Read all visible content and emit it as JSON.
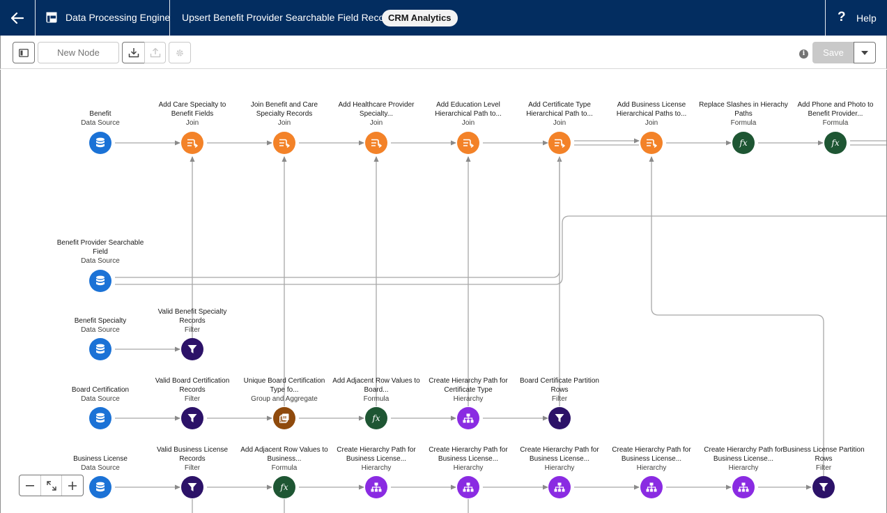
{
  "header": {
    "app_title": "Data Processing Engine",
    "recipe_title": "Upsert Benefit Provider Searchable Field Records",
    "badge": "CRM Analytics",
    "help_label": "Help"
  },
  "toolbar": {
    "new_node_label": "New Node",
    "save_label": "Save"
  },
  "colors": {
    "nav_bg": "#032d60",
    "data_source": "#1b72d6",
    "join": "#f38228",
    "formula": "#1e5633",
    "filter": "#2c1268",
    "group": "#8f4a0c",
    "hierarchy": "#8a2be2"
  },
  "nodes": [
    {
      "id": "n-benefit",
      "title": "Benefit",
      "type": "Data Source",
      "kind": "datasource",
      "icon": "database-icon"
    },
    {
      "id": "n-join1",
      "title": "Add Care Specialty to Benefit Fields",
      "type": "Join",
      "kind": "join",
      "icon": "join-icon"
    },
    {
      "id": "n-join2",
      "title": "Join Benefit and Care Specialty Records",
      "type": "Join",
      "kind": "join",
      "icon": "join-icon"
    },
    {
      "id": "n-join3",
      "title": "Add Healthcare Provider Specialty...",
      "type": "Join",
      "kind": "join",
      "icon": "join-icon"
    },
    {
      "id": "n-join4",
      "title": "Add Education Level Hierarchical Path to...",
      "type": "Join",
      "kind": "join",
      "icon": "join-icon"
    },
    {
      "id": "n-join5",
      "title": "Add Certificate Type Hierarchical Path to...",
      "type": "Join",
      "kind": "join",
      "icon": "join-icon"
    },
    {
      "id": "n-join6",
      "title": "Add Business License Hierarchical Paths to...",
      "type": "Join",
      "kind": "join",
      "icon": "join-icon"
    },
    {
      "id": "n-formula1",
      "title": "Replace Slashes in Hierachy Paths",
      "type": "Formula",
      "kind": "formula",
      "icon": "formula-icon"
    },
    {
      "id": "n-formula2",
      "title": "Add Phone and Photo to Benefit Provider...",
      "type": "Formula",
      "kind": "formula",
      "icon": "formula-icon"
    },
    {
      "id": "n-bpsf",
      "title": "Benefit Provider Searchable Field",
      "type": "Data Source",
      "kind": "datasource",
      "icon": "database-icon"
    },
    {
      "id": "n-bspec",
      "title": "Benefit Specialty",
      "type": "Data Source",
      "kind": "datasource",
      "icon": "database-icon"
    },
    {
      "id": "n-filter-bspec",
      "title": "Valid Benefit Specialty Records",
      "type": "Filter",
      "kind": "filter",
      "icon": "filter-icon"
    },
    {
      "id": "n-boardcert",
      "title": "Board Certification",
      "type": "Data Source",
      "kind": "datasource",
      "icon": "database-icon"
    },
    {
      "id": "n-filter-board",
      "title": "Valid Board Certification Records",
      "type": "Filter",
      "kind": "filter",
      "icon": "filter-icon"
    },
    {
      "id": "n-group-board",
      "title": "Unique Board Certification Type fo...",
      "type": "Group and Aggregate",
      "kind": "group",
      "icon": "aggregate-icon"
    },
    {
      "id": "n-formula-board",
      "title": "Add Adjacent Row Values to Board...",
      "type": "Formula",
      "kind": "formula",
      "icon": "formula-icon"
    },
    {
      "id": "n-hier-cert",
      "title": "Create Hierarchy Path for Certificate Type",
      "type": "Hierarchy",
      "kind": "hierarchy",
      "icon": "hierarchy-icon"
    },
    {
      "id": "n-filter-cert-part",
      "title": "Board Certificate Partition Rows",
      "type": "Filter",
      "kind": "filter",
      "icon": "filter-icon"
    },
    {
      "id": "n-buslic",
      "title": "Business License",
      "type": "Data Source",
      "kind": "datasource",
      "icon": "database-icon"
    },
    {
      "id": "n-filter-bl",
      "title": "Valid Business License Records",
      "type": "Filter",
      "kind": "filter",
      "icon": "filter-icon"
    },
    {
      "id": "n-formula-bl",
      "title": "Add Adjacent Row Values to Business...",
      "type": "Formula",
      "kind": "formula",
      "icon": "formula-icon"
    },
    {
      "id": "n-hier-bl1",
      "title": "Create Hierarchy Path for Business License...",
      "type": "Hierarchy",
      "kind": "hierarchy",
      "icon": "hierarchy-icon"
    },
    {
      "id": "n-hier-bl2",
      "title": "Create Hierarchy Path for Business License...",
      "type": "Hierarchy",
      "kind": "hierarchy",
      "icon": "hierarchy-icon"
    },
    {
      "id": "n-hier-bl3",
      "title": "Create Hierarchy Path for Business License...",
      "type": "Hierarchy",
      "kind": "hierarchy",
      "icon": "hierarchy-icon"
    },
    {
      "id": "n-hier-bl4",
      "title": "Create Hierarchy Path for Business License...",
      "type": "Hierarchy",
      "kind": "hierarchy",
      "icon": "hierarchy-icon"
    },
    {
      "id": "n-hier-bl5",
      "title": "Create Hierarchy Path for Business License...",
      "type": "Hierarchy",
      "kind": "hierarchy",
      "icon": "hierarchy-icon"
    },
    {
      "id": "n-filter-bl-part",
      "title": "Business License Partition Rows",
      "type": "Filter",
      "kind": "filter",
      "icon": "filter-icon"
    }
  ]
}
